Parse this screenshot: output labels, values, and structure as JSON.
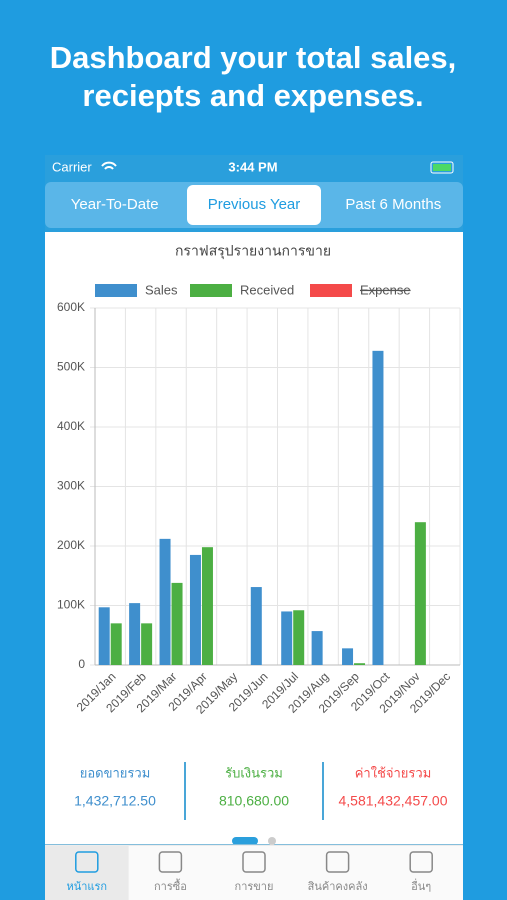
{
  "header": {
    "title_lines": [
      "Dashboard your total sales,",
      "reciepts and expenses."
    ]
  },
  "status_bar": {
    "carrier": "Carrier",
    "time": "3:44 PM"
  },
  "tabs": {
    "items": [
      "Year-To-Date",
      "Previous Year",
      "Past 6 Months"
    ],
    "selected": 1
  },
  "chart_data": {
    "type": "bar",
    "title": "กราฟสรุปรายงานการขาย",
    "categories": [
      "2019/Jan",
      "2019/Feb",
      "2019/Mar",
      "2019/Apr",
      "2019/May",
      "2019/Jun",
      "2019/Jul",
      "2019/Aug",
      "2019/Sep",
      "2019/Oct",
      "2019/Nov",
      "2019/Dec"
    ],
    "series": [
      {
        "name": "Sales",
        "color": "#3f8fcd",
        "values": [
          97000,
          104000,
          212000,
          185000,
          0,
          131000,
          90000,
          57000,
          28000,
          528000,
          0,
          0
        ]
      },
      {
        "name": "Received",
        "color": "#4caf43",
        "values": [
          70000,
          70000,
          138000,
          198000,
          0,
          0,
          92000,
          0,
          3000,
          0,
          240000,
          0
        ]
      },
      {
        "name": "Expense",
        "color": "#f44a4a",
        "hidden": true
      }
    ],
    "ylim": [
      0,
      600000
    ],
    "yticks": [
      0,
      {
        "value": 100000,
        "label": "100K"
      },
      {
        "value": 200000,
        "label": "200K"
      },
      {
        "value": 300000,
        "label": "300K"
      },
      {
        "value": 400000,
        "label": "400K"
      },
      {
        "value": 500000,
        "label": "500K"
      },
      {
        "value": 600000,
        "label": "600K"
      }
    ],
    "grid": true
  },
  "summary": [
    {
      "label": "ยอดขายรวม",
      "value": "1,432,712.50",
      "color": "#3f8fcd"
    },
    {
      "label": "รับเงินรวม",
      "value": "810,680.00",
      "color": "#4caf43"
    },
    {
      "label": "ค่าใช้จ่ายรวม",
      "value": "4,581,432,457.00",
      "color": "#f44a4a"
    }
  ],
  "tab_bar": {
    "items": [
      "หน้าแรก",
      "การซื้อ",
      "การขาย",
      "สินค้าคงคลัง",
      "อื่นๆ"
    ],
    "selected": 0
  }
}
